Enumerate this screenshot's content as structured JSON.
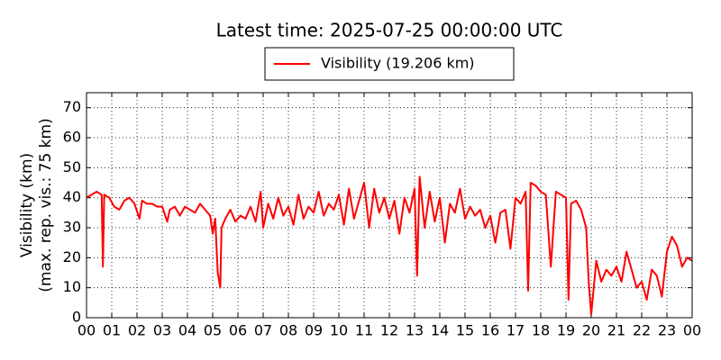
{
  "chart_data": {
    "type": "line",
    "title": "Latest time: 2025-07-25 00:00:00 UTC",
    "ylabel": [
      "Visibility (km)",
      "(max. rep. vis.: 75 km)"
    ],
    "x": [
      0.0,
      0.2,
      0.4,
      0.6,
      0.65,
      0.7,
      0.9,
      1.1,
      1.3,
      1.5,
      1.7,
      1.9,
      2.1,
      2.2,
      2.4,
      2.6,
      2.8,
      3.0,
      3.2,
      3.3,
      3.5,
      3.7,
      3.9,
      4.1,
      4.3,
      4.5,
      4.7,
      4.9,
      5.0,
      5.1,
      5.2,
      5.3,
      5.35,
      5.5,
      5.7,
      5.9,
      6.1,
      6.3,
      6.5,
      6.7,
      6.9,
      7.0,
      7.2,
      7.4,
      7.6,
      7.8,
      8.0,
      8.2,
      8.4,
      8.6,
      8.8,
      9.0,
      9.2,
      9.4,
      9.6,
      9.8,
      10.0,
      10.2,
      10.4,
      10.6,
      10.8,
      11.0,
      11.2,
      11.4,
      11.6,
      11.8,
      12.0,
      12.2,
      12.4,
      12.6,
      12.8,
      13.0,
      13.1,
      13.2,
      13.4,
      13.6,
      13.8,
      14.0,
      14.2,
      14.4,
      14.6,
      14.8,
      15.0,
      15.2,
      15.4,
      15.6,
      15.8,
      16.0,
      16.2,
      16.4,
      16.6,
      16.8,
      17.0,
      17.2,
      17.4,
      17.5,
      17.6,
      17.8,
      18.0,
      18.2,
      18.4,
      18.6,
      18.8,
      19.0,
      19.1,
      19.2,
      19.4,
      19.6,
      19.8,
      19.9,
      20.0,
      20.2,
      20.4,
      20.6,
      20.8,
      21.0,
      21.2,
      21.4,
      21.6,
      21.8,
      22.0,
      22.2,
      22.4,
      22.6,
      22.8,
      23.0,
      23.2,
      23.4,
      23.6,
      23.8,
      24.0
    ],
    "series": [
      {
        "name": "Visibility (19.206 km)",
        "color": "#ff0000",
        "values": [
          40,
          41,
          42,
          41,
          17,
          41,
          40,
          37,
          36,
          39,
          40,
          38,
          33,
          39,
          38,
          38,
          37,
          37,
          32,
          36,
          37,
          34,
          37,
          36,
          35,
          38,
          36,
          34,
          28,
          33,
          15,
          10,
          30,
          33,
          36,
          32,
          34,
          33,
          37,
          32,
          42,
          30,
          38,
          33,
          40,
          34,
          37,
          31,
          41,
          33,
          37,
          35,
          42,
          34,
          38,
          36,
          41,
          31,
          43,
          33,
          39,
          45,
          30,
          43,
          35,
          40,
          33,
          39,
          28,
          40,
          35,
          43,
          14,
          47,
          30,
          42,
          32,
          40,
          25,
          38,
          35,
          43,
          33,
          37,
          34,
          36,
          30,
          34,
          25,
          35,
          36,
          23,
          40,
          38,
          42,
          9,
          45,
          44,
          42,
          41,
          17,
          42,
          41,
          40,
          6,
          38,
          39,
          36,
          30,
          12,
          1,
          19,
          12,
          16,
          14,
          17,
          12,
          22,
          16,
          10,
          12,
          6,
          16,
          14,
          7,
          22,
          27,
          24,
          17,
          20,
          19
        ]
      }
    ],
    "xlim": [
      0,
      24
    ],
    "xticks": [
      {
        "value": 0,
        "label": "00"
      },
      {
        "value": 1,
        "label": "01"
      },
      {
        "value": 2,
        "label": "02"
      },
      {
        "value": 3,
        "label": "03"
      },
      {
        "value": 4,
        "label": "04"
      },
      {
        "value": 5,
        "label": "05"
      },
      {
        "value": 6,
        "label": "06"
      },
      {
        "value": 7,
        "label": "07"
      },
      {
        "value": 8,
        "label": "08"
      },
      {
        "value": 9,
        "label": "09"
      },
      {
        "value": 10,
        "label": "10"
      },
      {
        "value": 11,
        "label": "11"
      },
      {
        "value": 12,
        "label": "12"
      },
      {
        "value": 13,
        "label": "13"
      },
      {
        "value": 14,
        "label": "14"
      },
      {
        "value": 15,
        "label": "15"
      },
      {
        "value": 16,
        "label": "16"
      },
      {
        "value": 17,
        "label": "17"
      },
      {
        "value": 18,
        "label": "18"
      },
      {
        "value": 19,
        "label": "19"
      },
      {
        "value": 20,
        "label": "20"
      },
      {
        "value": 21,
        "label": "21"
      },
      {
        "value": 22,
        "label": "22"
      },
      {
        "value": 23,
        "label": "23"
      },
      {
        "value": 24,
        "label": "00"
      }
    ],
    "ylim": [
      0,
      75
    ],
    "yticks": [
      0,
      10,
      20,
      30,
      40,
      50,
      60,
      70
    ],
    "grid": true
  }
}
